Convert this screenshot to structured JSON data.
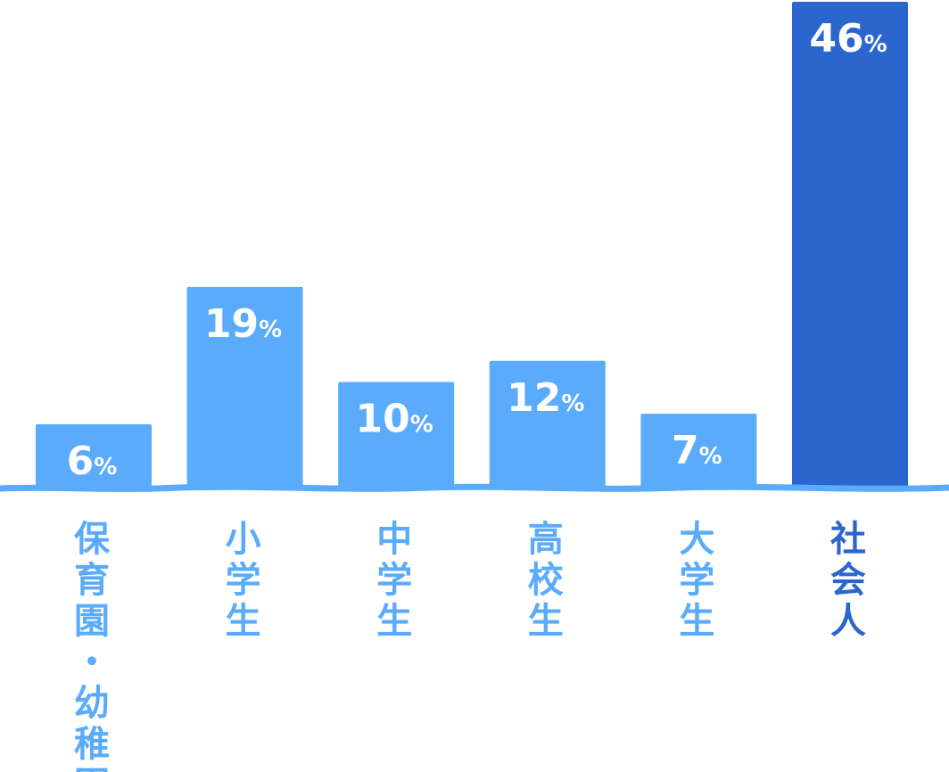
{
  "chart_data": {
    "type": "bar",
    "categories": [
      "保育園・幼稚園",
      "小学生",
      "中学生",
      "高校生",
      "大学生",
      "社会人"
    ],
    "values": [
      6,
      19,
      10,
      12,
      7,
      46
    ],
    "value_labels": [
      "6",
      "19",
      "10",
      "12",
      "7",
      "46"
    ],
    "unit": "%",
    "highlight_index": 5,
    "ylim": [
      0,
      46
    ],
    "colors": {
      "bar": "#5aabfb",
      "highlight": "#2b66cf",
      "baseline": "#5aabfb",
      "label": "#5aabfb",
      "highlight_label": "#2b66cf",
      "value_text": "#ffffff"
    },
    "grid": false,
    "legend": "none"
  }
}
